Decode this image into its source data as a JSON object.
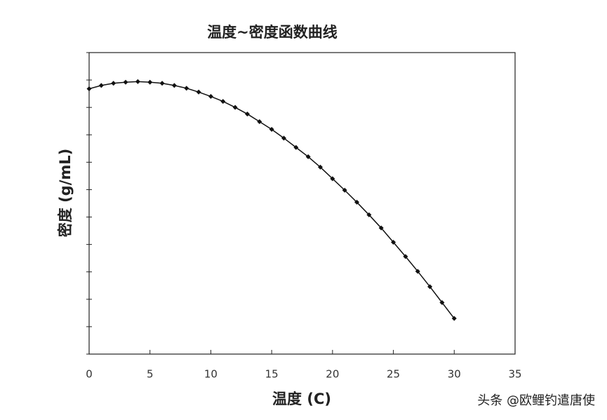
{
  "chart_data": {
    "type": "line",
    "title": "温度~密度函数曲线",
    "x_label": "温度 (C)",
    "y_label": "密度 (g/mL)",
    "watermark": "头条 @欧鲤钓遣唐使",
    "x": [
      0,
      1,
      2,
      3,
      4,
      5,
      6,
      7,
      8,
      9,
      10,
      11,
      12,
      13,
      14,
      15,
      16,
      17,
      18,
      19,
      20,
      21,
      22,
      23,
      24,
      25,
      26,
      27,
      28,
      29,
      30
    ],
    "series": [
      {
        "name": "密度",
        "color": "#111111",
        "values": [
          0.99984,
          0.9999,
          0.99994,
          0.99996,
          0.99997,
          0.99996,
          0.99994,
          0.9999,
          0.99985,
          0.99978,
          0.9997,
          0.99961,
          0.9995,
          0.99938,
          0.99924,
          0.9991,
          0.99894,
          0.99877,
          0.9986,
          0.99841,
          0.9982,
          0.99799,
          0.99777,
          0.99754,
          0.9973,
          0.99704,
          0.99678,
          0.99651,
          0.99623,
          0.99594,
          0.99565
        ]
      }
    ],
    "xlim": [
      0,
      35
    ],
    "xticks": [
      0,
      5,
      10,
      15,
      20,
      25,
      30,
      35
    ],
    "ylim": [
      0.995,
      1.0005
    ],
    "yticks": [
      0.995,
      0.9955,
      0.996,
      0.9965,
      0.997,
      0.9975,
      0.998,
      0.9985,
      0.999,
      0.9995,
      1.0,
      1.0005
    ],
    "show_ytick_labels": false,
    "grid": false
  }
}
